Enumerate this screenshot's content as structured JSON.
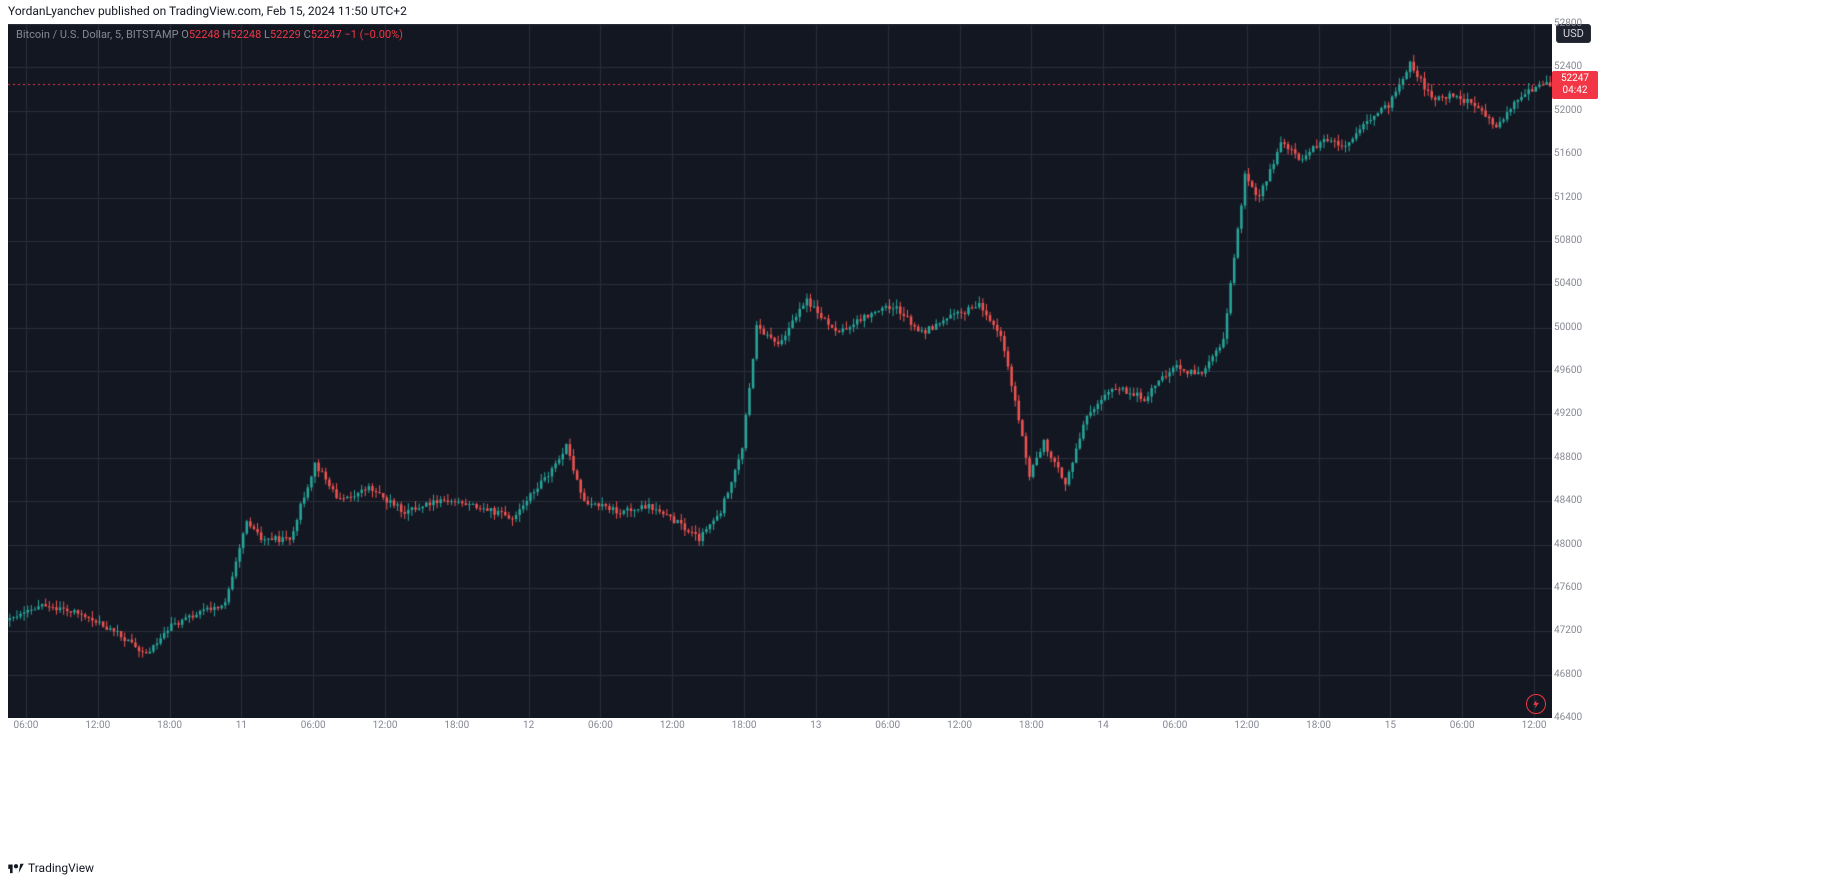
{
  "header": {
    "publish_line": "YordanLyanchev published on TradingView.com, Feb 15, 2024 11:50 UTC+2"
  },
  "ohlc": {
    "pair_label": "Bitcoin / U.S. Dollar, 5, BITSTAMP",
    "O_prefix": "O",
    "O": "52248",
    "H_prefix": "H",
    "H": "52248",
    "L_prefix": "L",
    "L": "52229",
    "C_prefix": "C",
    "C": "52247",
    "change": "−1 (−0.00%)"
  },
  "currency_badge": "USD",
  "price_tag": {
    "price": "52247",
    "countdown": "04:42"
  },
  "attribution": "TradingView",
  "chart": {
    "type": "candlestick",
    "background_color": "#131722",
    "grid_color": "#2a2e39",
    "up_color": "#26a69a",
    "down_color": "#ef5350",
    "wick_up_color": "#26a69a",
    "wick_down_color": "#ef5350",
    "axis_text_color": "#868993",
    "dotted_line_color": "#f23645",
    "current_price": 52247,
    "y_axis": {
      "min": 46400,
      "max": 52800,
      "step": 400,
      "ticks": [
        46400,
        46800,
        47200,
        47600,
        48000,
        48400,
        48800,
        49200,
        49600,
        50000,
        50400,
        50800,
        51200,
        51600,
        52000,
        52400,
        52800
      ]
    },
    "x_axis": {
      "n_bars": 320,
      "ticks": [
        {
          "i": 5,
          "label": "06:00"
        },
        {
          "i": 25,
          "label": "12:00"
        },
        {
          "i": 45,
          "label": "18:00"
        },
        {
          "i": 65,
          "label": "11"
        },
        {
          "i": 85,
          "label": "06:00"
        },
        {
          "i": 105,
          "label": "12:00"
        },
        {
          "i": 125,
          "label": "18:00"
        },
        {
          "i": 145,
          "label": "12"
        },
        {
          "i": 165,
          "label": "06:00"
        },
        {
          "i": 185,
          "label": "12:00"
        },
        {
          "i": 205,
          "label": "18:00"
        },
        {
          "i": 225,
          "label": "13"
        },
        {
          "i": 245,
          "label": "06:00"
        },
        {
          "i": 265,
          "label": "12:00"
        },
        {
          "i": 285,
          "label": "18:00"
        },
        {
          "i": 305,
          "label": "14"
        },
        {
          "i": 325,
          "label": "06:00"
        },
        {
          "i": 345,
          "label": "12:00"
        },
        {
          "i": 365,
          "label": "18:00"
        },
        {
          "i": 385,
          "label": "15"
        },
        {
          "i": 405,
          "label": "06:00"
        },
        {
          "i": 425,
          "label": "12:00"
        }
      ],
      "grid_positions": [
        5,
        25,
        45,
        65,
        85,
        105,
        125,
        145,
        165,
        185,
        205,
        225,
        245,
        265,
        285,
        305,
        325,
        345,
        365,
        385,
        405,
        425
      ],
      "total_slots": 430
    },
    "anchors": [
      {
        "i": 0,
        "p": 47300
      },
      {
        "i": 10,
        "p": 47450
      },
      {
        "i": 20,
        "p": 47350
      },
      {
        "i": 30,
        "p": 47180
      },
      {
        "i": 38,
        "p": 46980
      },
      {
        "i": 45,
        "p": 47250
      },
      {
        "i": 55,
        "p": 47400
      },
      {
        "i": 60,
        "p": 47450
      },
      {
        "i": 66,
        "p": 48200
      },
      {
        "i": 70,
        "p": 48050
      },
      {
        "i": 78,
        "p": 48050
      },
      {
        "i": 85,
        "p": 48750
      },
      {
        "i": 92,
        "p": 48400
      },
      {
        "i": 100,
        "p": 48520
      },
      {
        "i": 110,
        "p": 48300
      },
      {
        "i": 120,
        "p": 48420
      },
      {
        "i": 130,
        "p": 48350
      },
      {
        "i": 140,
        "p": 48250
      },
      {
        "i": 150,
        "p": 48650
      },
      {
        "i": 155,
        "p": 48900
      },
      {
        "i": 160,
        "p": 48400
      },
      {
        "i": 170,
        "p": 48300
      },
      {
        "i": 178,
        "p": 48350
      },
      {
        "i": 186,
        "p": 48200
      },
      {
        "i": 192,
        "p": 48050
      },
      {
        "i": 198,
        "p": 48300
      },
      {
        "i": 204,
        "p": 48900
      },
      {
        "i": 208,
        "p": 50000
      },
      {
        "i": 214,
        "p": 49850
      },
      {
        "i": 222,
        "p": 50250
      },
      {
        "i": 230,
        "p": 49950
      },
      {
        "i": 238,
        "p": 50100
      },
      {
        "i": 246,
        "p": 50200
      },
      {
        "i": 254,
        "p": 49950
      },
      {
        "i": 262,
        "p": 50100
      },
      {
        "i": 270,
        "p": 50200
      },
      {
        "i": 276,
        "p": 49950
      },
      {
        "i": 280,
        "p": 49300
      },
      {
        "i": 284,
        "p": 48650
      },
      {
        "i": 288,
        "p": 48950
      },
      {
        "i": 294,
        "p": 48550
      },
      {
        "i": 300,
        "p": 49200
      },
      {
        "i": 308,
        "p": 49450
      },
      {
        "i": 316,
        "p": 49350
      },
      {
        "i": 324,
        "p": 49650
      },
      {
        "i": 332,
        "p": 49550
      },
      {
        "i": 338,
        "p": 49900
      },
      {
        "i": 344,
        "p": 51400
      },
      {
        "i": 348,
        "p": 51200
      },
      {
        "i": 354,
        "p": 51700
      },
      {
        "i": 360,
        "p": 51550
      },
      {
        "i": 366,
        "p": 51750
      },
      {
        "i": 372,
        "p": 51650
      },
      {
        "i": 378,
        "p": 51900
      },
      {
        "i": 384,
        "p": 52050
      },
      {
        "i": 390,
        "p": 52450
      },
      {
        "i": 396,
        "p": 52100
      },
      {
        "i": 402,
        "p": 52150
      },
      {
        "i": 408,
        "p": 52050
      },
      {
        "i": 414,
        "p": 51850
      },
      {
        "i": 420,
        "p": 52100
      },
      {
        "i": 426,
        "p": 52247
      },
      {
        "i": 429,
        "p": 52247
      }
    ],
    "noise_body": 55,
    "noise_wick": 130
  }
}
